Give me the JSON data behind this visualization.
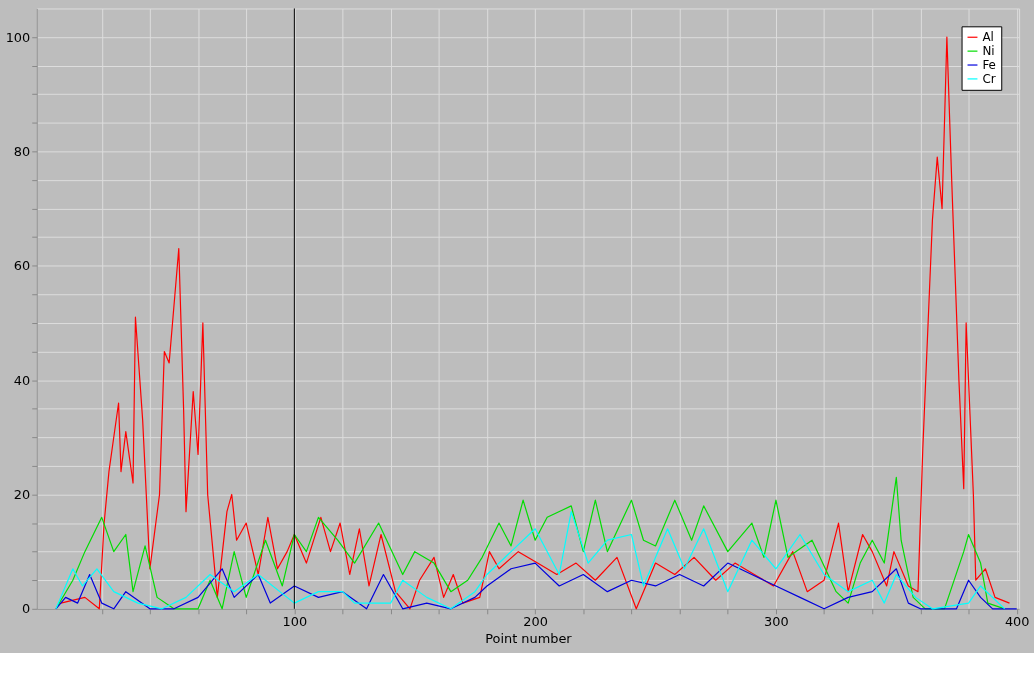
{
  "chart_data": {
    "type": "line",
    "xlabel": "Point number",
    "xlim": [
      -7,
      401
    ],
    "ylim": [
      0,
      105
    ],
    "xticks": [
      {
        "value": 20,
        "label": null
      },
      {
        "value": 40,
        "label": null
      },
      {
        "value": 60,
        "label": null
      },
      {
        "value": 80,
        "label": null
      },
      100,
      {
        "value": 120,
        "label": null
      },
      {
        "value": 140,
        "label": null
      },
      {
        "value": 160,
        "label": null
      },
      {
        "value": 180,
        "label": null
      },
      200,
      {
        "value": 220,
        "label": null
      },
      {
        "value": 240,
        "label": null
      },
      {
        "value": 260,
        "label": null
      },
      {
        "value": 280,
        "label": null
      },
      300,
      {
        "value": 320,
        "label": null
      },
      {
        "value": 340,
        "label": null
      },
      {
        "value": 360,
        "label": null
      },
      {
        "value": 380,
        "label": null
      },
      400
    ],
    "yticks": [
      0,
      {
        "value": 5,
        "label": null
      },
      {
        "value": 10,
        "label": null
      },
      {
        "value": 15,
        "label": null
      },
      20,
      {
        "value": 25,
        "label": null
      },
      {
        "value": 30,
        "label": null
      },
      {
        "value": 35,
        "label": null
      },
      40,
      {
        "value": 45,
        "label": null
      },
      {
        "value": 50,
        "label": null
      },
      {
        "value": 55,
        "label": null
      },
      60,
      {
        "value": 65,
        "label": null
      },
      {
        "value": 70,
        "label": null
      },
      {
        "value": 75,
        "label": null
      },
      80,
      {
        "value": 85,
        "label": null
      },
      {
        "value": 90,
        "label": null
      },
      {
        "value": 95,
        "label": null
      },
      100
    ],
    "grid": true,
    "legend": "top right",
    "line_style": "solid",
    "marker": "none",
    "ref_lines": [
      {
        "axis": "x",
        "value": 100,
        "label": null,
        "color": "#000000"
      }
    ],
    "series": [
      {
        "name": "Al",
        "color": "#ff0000",
        "x": [
          3,
          13,
          19,
          21,
          23,
          25,
          27,
          28,
          30,
          33,
          34,
          37,
          40,
          44,
          46,
          48,
          52,
          54,
          55,
          58,
          60,
          62,
          64,
          68,
          72,
          74,
          76,
          80,
          85,
          89,
          93,
          97,
          100,
          105,
          111,
          115,
          119,
          123,
          127,
          131,
          136,
          142,
          148,
          152,
          158,
          162,
          166,
          170,
          177,
          181,
          185,
          193,
          201,
          209,
          217,
          225,
          234,
          242,
          250,
          258,
          266,
          275,
          283,
          291,
          299,
          307,
          313,
          320,
          326,
          330,
          336,
          340,
          346,
          349,
          355,
          359,
          361,
          365,
          367,
          369,
          371,
          373,
          376,
          378,
          379,
          382,
          383,
          387,
          391,
          397
        ],
        "values": [
          1,
          2,
          0,
          15,
          24,
          30,
          36,
          24,
          31,
          22,
          51,
          33,
          7,
          20,
          45,
          43,
          63,
          35,
          17,
          38,
          27,
          50,
          20,
          2,
          17,
          20,
          12,
          15,
          6,
          16,
          7,
          10,
          13,
          8,
          16,
          10,
          15,
          6,
          14,
          4,
          13,
          3,
          0,
          5,
          9,
          2,
          6,
          1,
          2,
          10,
          7,
          10,
          8,
          6,
          8,
          5,
          9,
          0,
          8,
          6,
          9,
          5,
          8,
          6,
          4,
          10,
          3,
          5,
          15,
          3,
          13,
          10,
          4,
          10,
          4,
          3,
          28,
          68,
          79,
          70,
          100,
          75,
          40,
          21,
          50,
          20,
          5,
          7,
          2,
          1
        ]
      },
      {
        "name": "Ni",
        "color": "#00dd00",
        "x": [
          1,
          8,
          13,
          20,
          25,
          30,
          33,
          38,
          43,
          50,
          60,
          65,
          70,
          75,
          80,
          88,
          95,
          100,
          105,
          110,
          118,
          125,
          135,
          145,
          150,
          158,
          165,
          172,
          178,
          185,
          190,
          195,
          200,
          205,
          215,
          220,
          225,
          230,
          240,
          245,
          250,
          258,
          265,
          270,
          280,
          290,
          295,
          300,
          305,
          315,
          325,
          330,
          335,
          340,
          345,
          350,
          352,
          357,
          362,
          370,
          378,
          380,
          385,
          388,
          395
        ],
        "values": [
          0,
          5,
          10,
          16,
          10,
          13,
          3,
          11,
          2,
          0,
          0,
          5,
          0,
          10,
          2,
          12,
          4,
          13,
          10,
          16,
          12,
          8,
          15,
          6,
          10,
          8,
          3,
          5,
          9,
          15,
          11,
          19,
          12,
          16,
          18,
          10,
          19,
          10,
          19,
          12,
          11,
          19,
          12,
          18,
          10,
          15,
          9,
          19,
          9,
          12,
          3,
          1,
          8,
          12,
          8,
          23,
          12,
          2,
          0,
          0,
          10,
          13,
          8,
          1,
          0
        ]
      },
      {
        "name": "Fe",
        "color": "#0000dd",
        "x": [
          1,
          5,
          10,
          15,
          20,
          25,
          30,
          40,
          50,
          60,
          70,
          75,
          85,
          90,
          100,
          110,
          120,
          130,
          137,
          145,
          155,
          165,
          175,
          180,
          190,
          200,
          210,
          220,
          230,
          240,
          250,
          260,
          270,
          280,
          290,
          300,
          310,
          320,
          330,
          340,
          350,
          355,
          360,
          375,
          380,
          385,
          390,
          400
        ],
        "values": [
          0,
          2,
          1,
          6,
          1,
          0,
          3,
          0,
          0,
          2,
          7,
          2,
          6,
          1,
          4,
          2,
          3,
          0,
          6,
          0,
          1,
          0,
          2,
          4,
          7,
          8,
          4,
          6,
          3,
          5,
          4,
          6,
          4,
          8,
          6,
          4,
          2,
          0,
          2,
          3,
          7,
          1,
          0,
          0,
          5,
          2,
          0,
          0
        ]
      },
      {
        "name": "Cr",
        "color": "#00ffff",
        "x": [
          1,
          8,
          12,
          18,
          25,
          35,
          45,
          55,
          65,
          75,
          85,
          100,
          110,
          120,
          125,
          140,
          145,
          155,
          165,
          175,
          180,
          190,
          200,
          210,
          215,
          222,
          230,
          240,
          245,
          255,
          262,
          270,
          280,
          290,
          300,
          310,
          320,
          330,
          340,
          345,
          350,
          358,
          365,
          380,
          385,
          395
        ],
        "values": [
          0,
          7,
          4,
          7,
          3,
          1,
          0,
          2,
          6,
          3,
          6,
          1,
          3,
          3,
          1,
          1,
          5,
          2,
          0,
          3,
          6,
          10,
          14,
          6,
          17,
          8,
          12,
          13,
          4,
          14,
          7,
          14,
          3,
          12,
          7,
          13,
          6,
          3,
          5,
          1,
          6,
          2,
          0,
          1,
          4,
          0
        ]
      }
    ]
  }
}
